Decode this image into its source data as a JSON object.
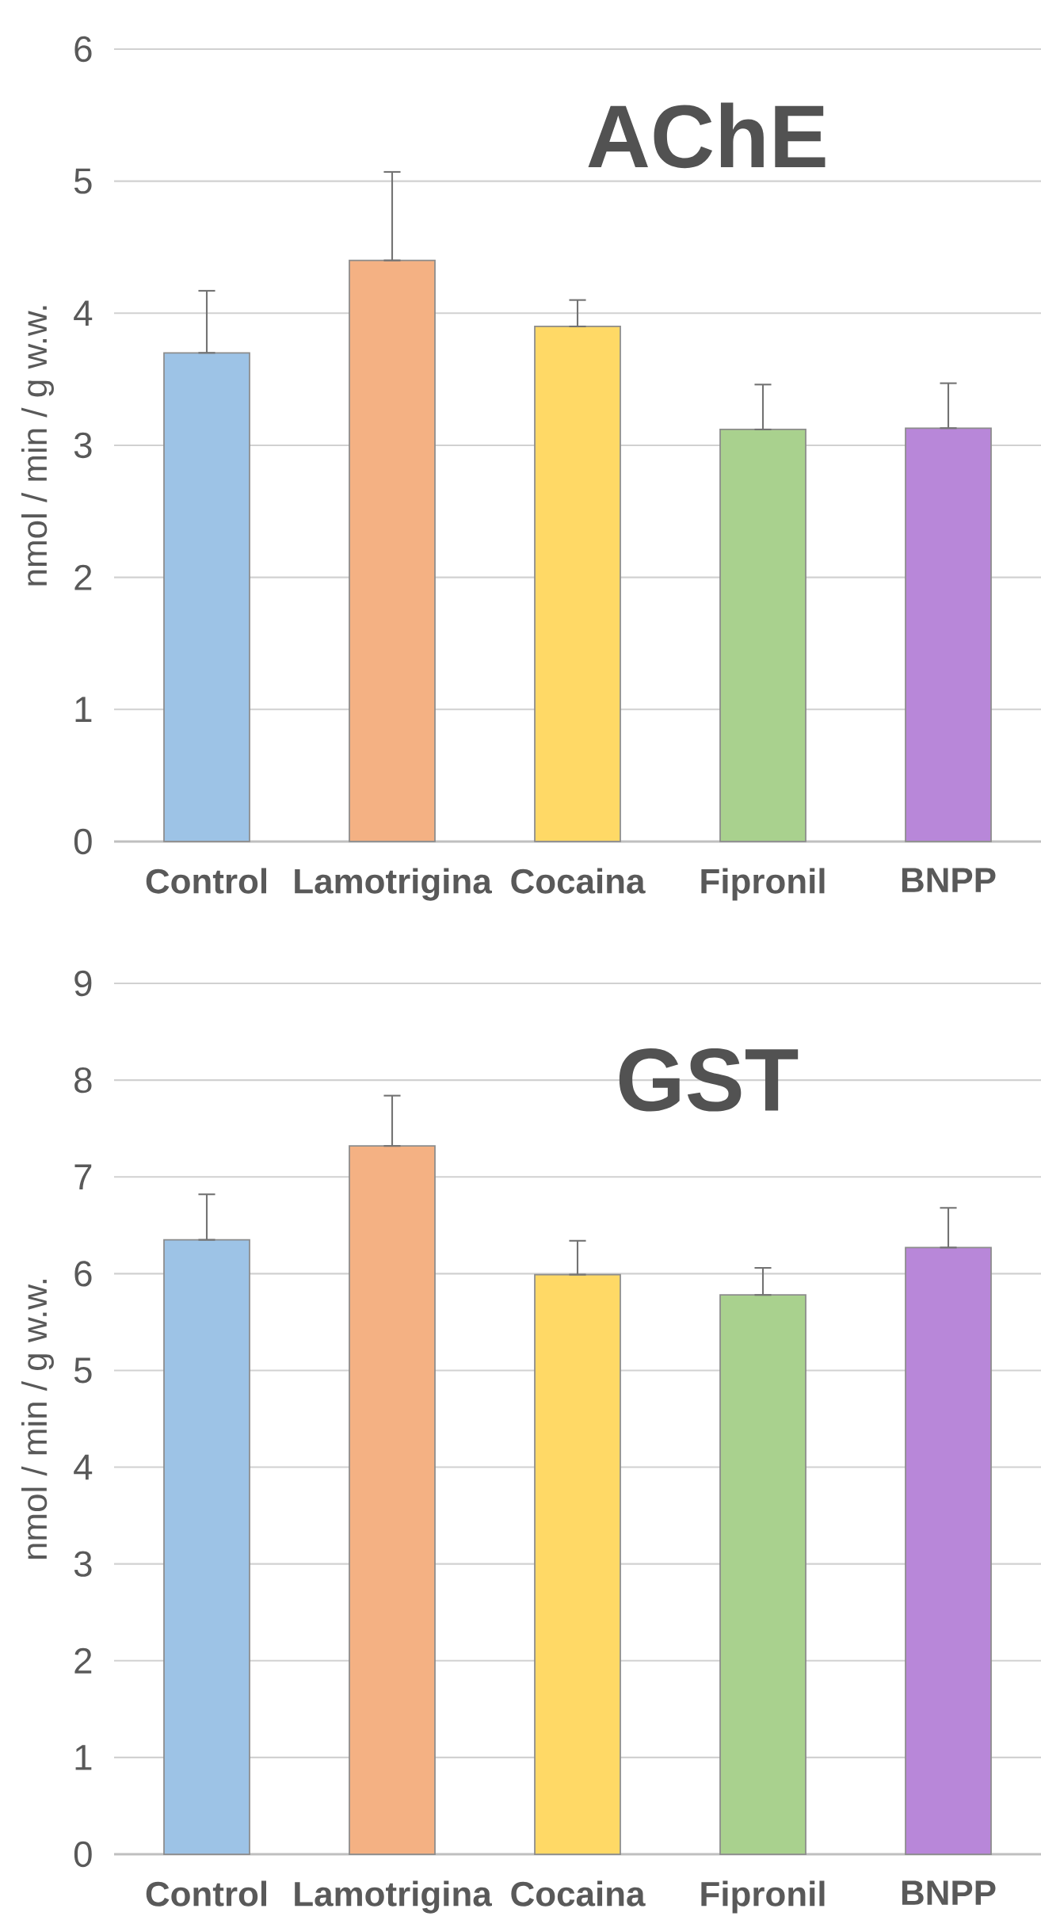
{
  "chart_data": [
    {
      "type": "bar",
      "title": "AChE",
      "ylabel": "nmol / min / g w.w.",
      "categories": [
        "Control",
        "Lamotrigina",
        "Cocaina",
        "Fipronil",
        "BNPP"
      ],
      "values": [
        3.7,
        4.4,
        3.9,
        3.12,
        3.13
      ],
      "colors": [
        "#9dc3e6",
        "#f4b183",
        "#ffd966",
        "#a9d18e",
        "#b887d9"
      ],
      "errors": [
        [
          3.7,
          4.17
        ],
        [
          4.4,
          5.07
        ],
        [
          3.9,
          4.1
        ],
        [
          3.12,
          3.46
        ],
        [
          3.13,
          3.47
        ]
      ],
      "ylim": [
        0,
        6
      ],
      "yticks": [
        0,
        1,
        2,
        3,
        4,
        5,
        6
      ],
      "grid": "y"
    },
    {
      "type": "bar",
      "title": "GST",
      "ylabel": "nmol / min / g w.w.",
      "categories": [
        "Control",
        "Lamotrigina",
        "Cocaina",
        "Fipronil",
        "BNPP"
      ],
      "values": [
        6.35,
        7.32,
        5.99,
        5.78,
        6.27
      ],
      "colors": [
        "#9dc3e6",
        "#f4b183",
        "#ffd966",
        "#a9d18e",
        "#b887d9"
      ],
      "errors": [
        [
          6.35,
          6.82
        ],
        [
          7.32,
          7.84
        ],
        [
          5.99,
          6.34
        ],
        [
          5.78,
          6.06
        ],
        [
          6.27,
          6.68
        ]
      ],
      "ylim": [
        0,
        9
      ],
      "yticks": [
        0,
        1,
        2,
        3,
        4,
        5,
        6,
        7,
        8,
        9
      ],
      "grid": "y"
    }
  ]
}
